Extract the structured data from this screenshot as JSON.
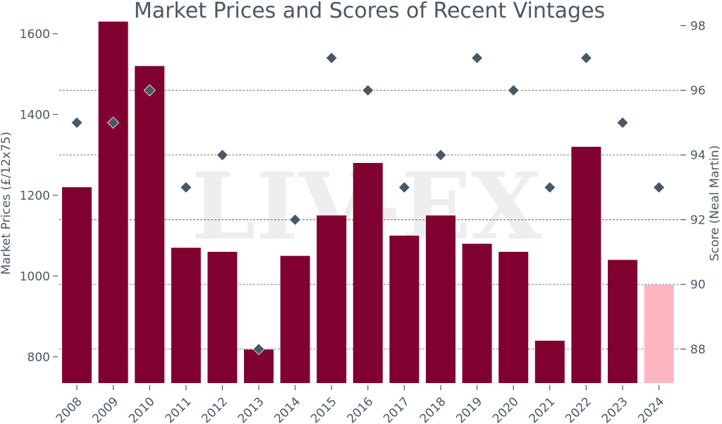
{
  "chart_data": {
    "type": "bar",
    "title": "Market Prices and Scores of Recent Vintages",
    "watermark": "LIV-EX",
    "categories": [
      "2008",
      "2009",
      "2010",
      "2011",
      "2012",
      "2013",
      "2014",
      "2015",
      "2016",
      "2017",
      "2018",
      "2019",
      "2020",
      "2021",
      "2022",
      "2023",
      "2024"
    ],
    "series": [
      {
        "name": "Market Prices (£/12x75)",
        "type": "bar",
        "axis": "left",
        "values": [
          1220,
          1630,
          1520,
          1070,
          1060,
          818,
          1050,
          1150,
          1280,
          1100,
          1150,
          1080,
          1060,
          840,
          1320,
          1040,
          978
        ],
        "color": "#800030",
        "highlight_color": "#ffb6c1",
        "highlight_index": 16
      },
      {
        "name": "Score (Neal Martin)",
        "type": "scatter",
        "marker": "diamond",
        "axis": "right",
        "values": [
          95,
          95,
          96,
          93,
          94,
          88,
          92,
          97,
          96,
          93,
          94,
          97,
          96,
          93,
          97,
          95,
          93
        ],
        "color": "#4a5866"
      }
    ],
    "ylabel": "Market Prices (£/12x75)",
    "y2label": "Score (Neal Martin)",
    "ylim": [
      735,
      1652
    ],
    "y2lim": [
      86.95,
      98.4
    ],
    "yticks": [
      800,
      1000,
      1200,
      1400,
      1600
    ],
    "y2ticks": [
      88,
      90,
      92,
      94,
      96,
      98
    ],
    "grid": true,
    "legend": "none"
  }
}
